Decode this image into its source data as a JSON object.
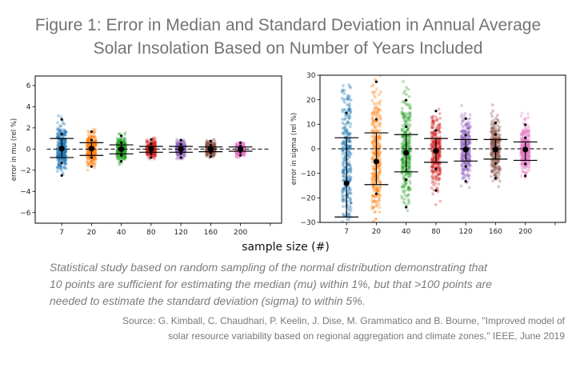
{
  "figure": {
    "title_lines": [
      "Figure 1: Error in Median and Standard Deviation in Annual Average",
      "Solar Insolation Based on Number of Years Included"
    ],
    "caption_lines": [
      "Statistical study based on random sampling of the normal distribution demonstrating that",
      "10 points are sufficient for estimating the median (mu) within 1%, but that >100 points are",
      "needed to estimate the standard deviation (sigma) to within 5%."
    ],
    "source_lines": [
      "Source: G. Kimball, C. Chaudhari, P. Keelin, J. Dise, M. Grammatico and B. Bourne, \"Improved model of",
      "solar resource variability based on regional aggregation and climate zones,\" IEEE, June 2019"
    ]
  },
  "shared_xlabel": "sample size (#)",
  "chart_data": [
    {
      "type": "scatter",
      "title": "",
      "xlabel": "",
      "ylabel": "error in mu (rel %)",
      "categories": [
        "7",
        "20",
        "40",
        "80",
        "120",
        "160",
        "200"
      ],
      "xtick_labels": [
        "7",
        "20",
        "40",
        "80",
        "120",
        "160",
        "200",
        ""
      ],
      "xlim": [
        -0.89,
        7.38
      ],
      "ylim": [
        -7.0,
        6.9
      ],
      "yticks": [
        -6,
        -4,
        -2,
        0,
        2,
        4,
        6
      ],
      "ytick_labels": [
        "−6",
        "−4",
        "−2",
        "0",
        "2",
        "4",
        "6"
      ],
      "reference_line": {
        "y": 0,
        "style": "dashed",
        "x_from": -0.5,
        "x_to": 7.0
      },
      "grid": false,
      "series": [
        {
          "name": "7",
          "color": "#1f77b4",
          "median": 0.05,
          "err_low": -0.8,
          "err_high": 1.0,
          "markers": [
            2.8,
            1.4,
            -1.3,
            -2.5
          ],
          "spread": {
            "mean": 0.0,
            "sd": 1.1,
            "min": -3.7,
            "max": 5.4,
            "n": 300
          }
        },
        {
          "name": "20",
          "color": "#ff7f0e",
          "median": 0.05,
          "err_low": -0.6,
          "err_high": 0.6,
          "markers": [
            1.65,
            0.85,
            -0.8,
            -1.65
          ],
          "spread": {
            "mean": 0.0,
            "sd": 0.75,
            "min": -2.4,
            "max": 2.1,
            "n": 300
          }
        },
        {
          "name": "40",
          "color": "#2ca02c",
          "median": 0.0,
          "err_low": -0.45,
          "err_high": 0.4,
          "markers": [
            1.25,
            0.6,
            -0.6,
            -1.15
          ],
          "spread": {
            "mean": 0.0,
            "sd": 0.55,
            "min": -2.0,
            "max": 1.6,
            "n": 300
          }
        },
        {
          "name": "80",
          "color": "#d62728",
          "median": 0.0,
          "err_low": -0.3,
          "err_high": 0.25,
          "markers": [
            0.9,
            0.5,
            -0.45,
            -0.8
          ],
          "spread": {
            "mean": 0.0,
            "sd": 0.42,
            "min": -1.1,
            "max": 1.2,
            "n": 300
          }
        },
        {
          "name": "120",
          "color": "#9467bd",
          "median": 0.0,
          "err_low": -0.3,
          "err_high": 0.25,
          "markers": [
            0.85,
            0.45,
            -0.45,
            -0.8
          ],
          "spread": {
            "mean": 0.0,
            "sd": 0.38,
            "min": -1.0,
            "max": 1.1,
            "n": 300
          }
        },
        {
          "name": "160",
          "color": "#8c564b",
          "median": 0.0,
          "err_low": -0.25,
          "err_high": 0.2,
          "markers": [
            0.75,
            0.35,
            -0.35,
            -0.7
          ],
          "spread": {
            "mean": 0.0,
            "sd": 0.34,
            "min": -0.9,
            "max": 0.95,
            "n": 300
          }
        },
        {
          "name": "200",
          "color": "#e377c2",
          "median": 0.0,
          "err_low": -0.2,
          "err_high": 0.2,
          "markers": [
            0.6,
            0.3,
            -0.3,
            -0.6
          ],
          "spread": {
            "mean": 0.0,
            "sd": 0.3,
            "min": -0.85,
            "max": 0.7,
            "n": 300
          }
        }
      ]
    },
    {
      "type": "scatter",
      "title": "",
      "xlabel": "",
      "ylabel": "error in sigma (rel %)",
      "categories": [
        "7",
        "20",
        "40",
        "80",
        "120",
        "160",
        "200"
      ],
      "xtick_labels": [
        "7",
        "20",
        "40",
        "80",
        "120",
        "160",
        "200",
        ""
      ],
      "xlim": [
        -0.89,
        7.35
      ],
      "ylim": [
        -30,
        30
      ],
      "yticks": [
        -30,
        -20,
        -10,
        0,
        10,
        20,
        30
      ],
      "ytick_labels": [
        "−30",
        "−20",
        "−10",
        "0",
        "10",
        "20",
        "30"
      ],
      "reference_line": {
        "y": 0,
        "style": "dashed",
        "x_from": -0.5,
        "x_to": 7.0
      },
      "grid": false,
      "series": [
        {
          "name": "7",
          "color": "#1f77b4",
          "median": -14.0,
          "err_low": -27.8,
          "err_high": 4.5,
          "markers": [
            14.7
          ],
          "spread": {
            "mean": -5.0,
            "sd": 18.0,
            "min": -30,
            "max": 30,
            "n": 280
          }
        },
        {
          "name": "20",
          "color": "#ff7f0e",
          "median": -5.2,
          "err_low": -14.6,
          "err_high": 6.5,
          "markers": [
            27.3,
            12.0,
            -18.3
          ],
          "spread": {
            "mean": -3.0,
            "sd": 15.0,
            "min": -30,
            "max": 30,
            "n": 300
          }
        },
        {
          "name": "40",
          "color": "#2ca02c",
          "median": -1.6,
          "err_low": -9.4,
          "err_high": 5.8,
          "markers": [
            19.8,
            9.0,
            -12.6,
            -23.8
          ],
          "spread": {
            "mean": 0.0,
            "sd": 11.0,
            "min": -27,
            "max": 29,
            "n": 300
          }
        },
        {
          "name": "80",
          "color": "#d62728",
          "median": -0.9,
          "err_low": -5.5,
          "err_high": 4.2,
          "markers": [
            15.4,
            7.5,
            -8.2,
            -17.0
          ],
          "spread": {
            "mean": -1.0,
            "sd": 7.5,
            "min": -28,
            "max": 19,
            "n": 300
          }
        },
        {
          "name": "120",
          "color": "#9467bd",
          "median": -0.3,
          "err_low": -5.0,
          "err_high": 3.8,
          "markers": [
            12.3,
            5.6,
            -7.2,
            -13.3
          ],
          "spread": {
            "mean": 0.0,
            "sd": 6.5,
            "min": -22,
            "max": 21,
            "n": 300
          }
        },
        {
          "name": "160",
          "color": "#8c564b",
          "median": -0.3,
          "err_low": -4.2,
          "err_high": 3.8,
          "markers": [
            10.6,
            5.8,
            -6.0,
            -12.0
          ],
          "spread": {
            "mean": 0.0,
            "sd": 6.0,
            "min": -18,
            "max": 19,
            "n": 300
          }
        },
        {
          "name": "200",
          "color": "#e377c2",
          "median": -0.3,
          "err_low": -4.7,
          "err_high": 2.8,
          "markers": [
            9.8,
            4.5,
            -6.2,
            -11.0
          ],
          "spread": {
            "mean": 0.0,
            "sd": 5.0,
            "min": -14.6,
            "max": 15.4,
            "n": 300
          }
        }
      ]
    }
  ]
}
